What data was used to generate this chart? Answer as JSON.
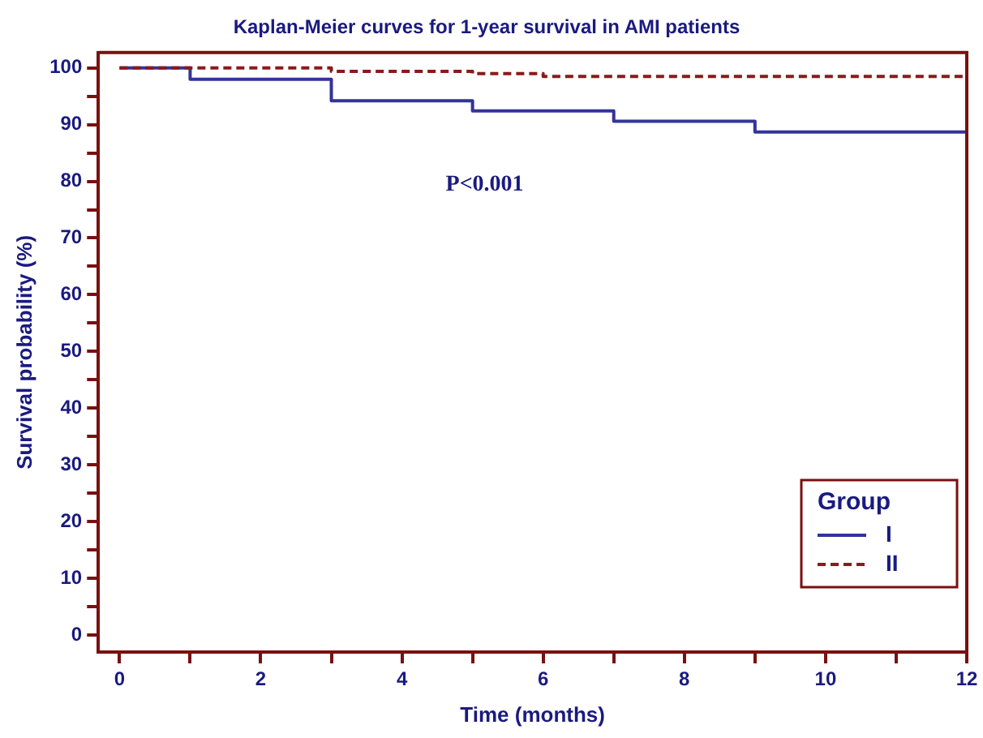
{
  "chart_data": {
    "type": "step",
    "title": "Kaplan-Meier curves for 1-year survival in AMI patients",
    "xlabel": "Time (months)",
    "ylabel": "Survival probability (%)",
    "legend_title": "Group",
    "legend": "bottom right",
    "grid": false,
    "line_style": "solid",
    "marker": "none",
    "series": [
      {
        "name": "I",
        "color": "#333399",
        "x": [
          0,
          1,
          3,
          5,
          7,
          9,
          12
        ],
        "values": [
          100,
          98,
          94.2,
          92.4,
          90.6,
          88.7,
          88.7
        ]
      },
      {
        "name": "II",
        "color": "#8b1a1a",
        "line_style": "dashed",
        "x": [
          0,
          3,
          5,
          6,
          12
        ],
        "values": [
          100,
          99.4,
          99.0,
          98.5,
          98.5
        ]
      }
    ],
    "xlim": [
      -0.3,
      12
    ],
    "xticks": [
      0,
      {
        "value": 1,
        "label": null
      },
      2,
      {
        "value": 3,
        "label": null
      },
      4,
      {
        "value": 5,
        "label": null
      },
      6,
      {
        "value": 7,
        "label": null
      },
      8,
      {
        "value": 9,
        "label": null
      },
      10,
      {
        "value": 11,
        "label": null
      },
      12
    ],
    "ylim": [
      -3,
      102.7
    ],
    "yticks": [
      0,
      {
        "value": 5,
        "label": null
      },
      10,
      {
        "value": 15,
        "label": null
      },
      20,
      {
        "value": 25,
        "label": null
      },
      30,
      {
        "value": 35,
        "label": null
      },
      40,
      {
        "value": 45,
        "label": null
      },
      50,
      {
        "value": 55,
        "label": null
      },
      60,
      {
        "value": 65,
        "label": null
      },
      70,
      {
        "value": 75,
        "label": null
      },
      80,
      {
        "value": 85,
        "label": null
      },
      90,
      {
        "value": 95,
        "label": null
      },
      100
    ],
    "annotations": [
      "P<0.001"
    ]
  }
}
